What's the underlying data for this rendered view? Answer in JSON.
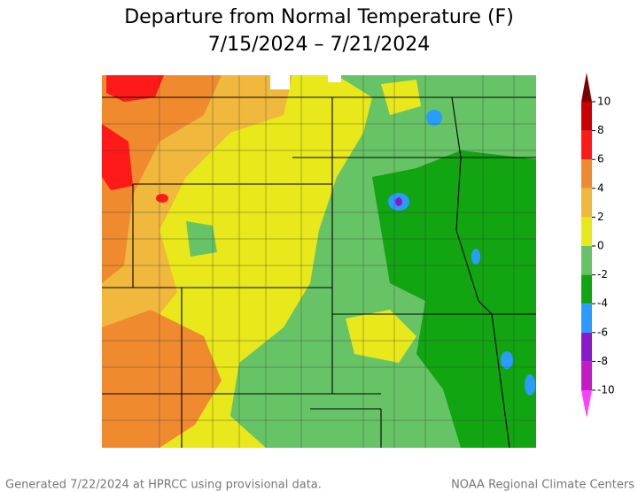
{
  "title": [
    "Departure from Normal Temperature (F)",
    "7/15/2024 – 7/21/2024"
  ],
  "colorbar": {
    "ticks": [
      10,
      8,
      6,
      4,
      2,
      0,
      -2,
      -4,
      -6,
      -8,
      -10
    ],
    "colors": [
      "#7f0000",
      "#cc0000",
      "#ff1a1a",
      "#f08a2e",
      "#f0b83c",
      "#e8e81a",
      "#66c466",
      "#11a511",
      "#2a9bff",
      "#8a1ac8",
      "#c61ac8",
      "#ff40ff"
    ]
  },
  "footer": {
    "left": "Generated 7/22/2024 at HPRCC using provisional data.",
    "right": "NOAA Regional Climate Centers"
  }
}
